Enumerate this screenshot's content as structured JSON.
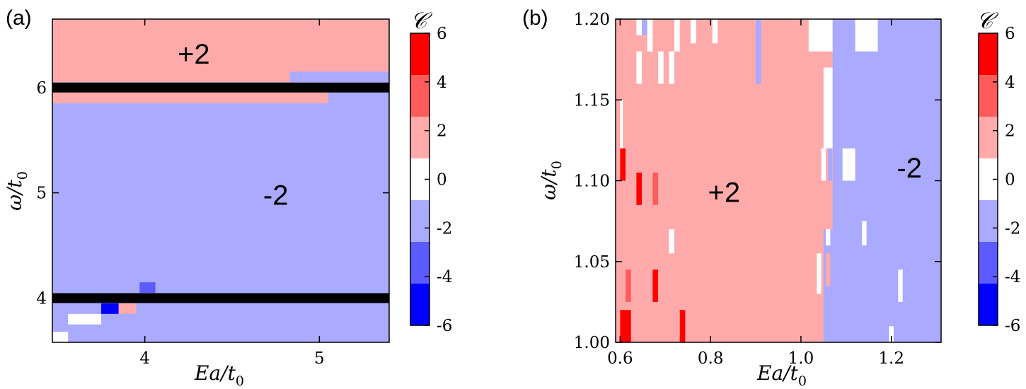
{
  "chart_data": [
    {
      "panel_label": "(a)",
      "type": "heatmap",
      "xlabel": "Ea/t₀",
      "ylabel": "ω/t₀",
      "xlim": [
        3.47,
        5.4
      ],
      "ylim": [
        3.58,
        6.65
      ],
      "xticks": [
        "4",
        "5"
      ],
      "yticks": [
        "4",
        "5",
        "6"
      ],
      "background_value": -2,
      "regions": [
        {
          "x": [
            3.47,
            5.4
          ],
          "y": [
            6.05,
            6.65
          ],
          "value": 2
        },
        {
          "x": [
            4.83,
            5.4
          ],
          "y": [
            6.05,
            6.15
          ],
          "value": -2
        },
        {
          "x": [
            3.47,
            5.05
          ],
          "y": [
            5.85,
            6.0
          ],
          "value": 2
        },
        {
          "x": [
            3.97,
            4.06
          ],
          "y": [
            4.05,
            4.15
          ],
          "value": -4
        },
        {
          "x": [
            3.75,
            3.85
          ],
          "y": [
            3.85,
            3.95
          ],
          "value": -6
        },
        {
          "x": [
            3.85,
            3.95
          ],
          "y": [
            3.85,
            3.95
          ],
          "value": 2
        },
        {
          "x": [
            3.56,
            3.75
          ],
          "y": [
            3.75,
            3.85
          ],
          "value": 0
        },
        {
          "x": [
            3.47,
            3.56
          ],
          "y": [
            3.58,
            3.68
          ],
          "value": 0
        }
      ],
      "black_lines_y": [
        6.0,
        4.0
      ],
      "annotations": [
        {
          "text": "+2",
          "x": 4.28,
          "y": 6.32
        },
        {
          "text": "-2",
          "x": 4.75,
          "y": 4.98
        }
      ],
      "colorbar": {
        "label": "𝒞",
        "ticks": [
          "6",
          "4",
          "2",
          "0",
          "-2",
          "-4",
          "-6"
        ],
        "colors": [
          "#ff0000",
          "#ff5b5b",
          "#ffaaaa",
          "#ffffff",
          "#aaaaff",
          "#5b5bff",
          "#0000ff"
        ]
      }
    },
    {
      "panel_label": "(b)",
      "type": "heatmap",
      "xlabel": "Ea/t₀",
      "ylabel": "ω/t₀",
      "xlim": [
        0.59,
        1.31
      ],
      "ylim": [
        1.0,
        1.2
      ],
      "xticks": [
        "0.6",
        "0.8",
        "1.0",
        "1.2"
      ],
      "yticks": [
        "1.00",
        "1.05",
        "1.10",
        "1.15",
        "1.20"
      ],
      "background_value": 2,
      "regions": [
        {
          "x": [
            1.07,
            1.31
          ],
          "y": [
            1.0,
            1.2
          ],
          "value": -2
        },
        {
          "x": [
            1.05,
            1.07
          ],
          "y": [
            1.0,
            1.07
          ],
          "value": -2
        },
        {
          "x": [
            1.12,
            1.17
          ],
          "y": [
            1.18,
            1.2
          ],
          "value": 0
        },
        {
          "x": [
            1.017,
            1.07
          ],
          "y": [
            1.18,
            1.2
          ],
          "value": 0
        },
        {
          "x": [
            1.05,
            1.07
          ],
          "y": [
            1.12,
            1.17
          ],
          "value": 0
        },
        {
          "x": [
            1.092,
            1.104
          ],
          "y": [
            1.1,
            1.12
          ],
          "value": 0
        },
        {
          "x": [
            1.104,
            1.12
          ],
          "y": [
            1.1,
            1.12
          ],
          "value": 0
        },
        {
          "x": [
            1.06,
            1.069
          ],
          "y": [
            1.1,
            1.12
          ],
          "value": -2
        },
        {
          "x": [
            1.045,
            1.055
          ],
          "y": [
            1.1,
            1.12
          ],
          "value": 0
        },
        {
          "x": [
            1.035,
            1.045
          ],
          "y": [
            1.03,
            1.055
          ],
          "value": 0
        },
        {
          "x": [
            1.055,
            1.065
          ],
          "y": [
            1.06,
            1.07
          ],
          "value": 0
        },
        {
          "x": [
            1.055,
            1.065
          ],
          "y": [
            1.035,
            1.055
          ],
          "value": 2
        },
        {
          "x": [
            1.135,
            1.145
          ],
          "y": [
            1.06,
            1.075
          ],
          "value": 0
        },
        {
          "x": [
            1.195,
            1.205
          ],
          "y": [
            1.0,
            1.01
          ],
          "value": 0
        },
        {
          "x": [
            1.215,
            1.225
          ],
          "y": [
            1.025,
            1.045
          ],
          "value": 0
        },
        {
          "x": [
            0.6,
            0.606
          ],
          "y": [
            1.12,
            1.15
          ],
          "value": 0
        },
        {
          "x": [
            0.6,
            0.612
          ],
          "y": [
            1.1,
            1.12
          ],
          "value": 6
        },
        {
          "x": [
            0.6,
            0.624
          ],
          "y": [
            1.0,
            1.02
          ],
          "value": 6
        },
        {
          "x": [
            0.612,
            0.624
          ],
          "y": [
            1.025,
            1.045
          ],
          "value": 4
        },
        {
          "x": [
            0.636,
            0.648
          ],
          "y": [
            1.085,
            1.105
          ],
          "value": 6
        },
        {
          "x": [
            0.672,
            0.684
          ],
          "y": [
            1.085,
            1.105
          ],
          "value": 4
        },
        {
          "x": [
            0.672,
            0.684
          ],
          "y": [
            1.025,
            1.045
          ],
          "value": 6
        },
        {
          "x": [
            0.732,
            0.744
          ],
          "y": [
            1.0,
            1.02
          ],
          "value": 6
        },
        {
          "x": [
            0.636,
            0.648
          ],
          "y": [
            1.16,
            1.18
          ],
          "value": 0
        },
        {
          "x": [
            0.648,
            0.66
          ],
          "y": [
            1.19,
            1.2
          ],
          "value": -2
        },
        {
          "x": [
            0.636,
            0.648
          ],
          "y": [
            1.19,
            1.2
          ],
          "value": 0
        },
        {
          "x": [
            0.66,
            0.672
          ],
          "y": [
            1.18,
            1.2
          ],
          "value": 0
        },
        {
          "x": [
            0.684,
            0.696
          ],
          "y": [
            1.16,
            1.18
          ],
          "value": 0
        },
        {
          "x": [
            0.72,
            0.732
          ],
          "y": [
            1.18,
            1.2
          ],
          "value": 0
        },
        {
          "x": [
            0.708,
            0.72
          ],
          "y": [
            1.16,
            1.18
          ],
          "value": 0
        },
        {
          "x": [
            0.756,
            0.768
          ],
          "y": [
            1.185,
            1.2
          ],
          "value": 0
        },
        {
          "x": [
            0.804,
            0.816
          ],
          "y": [
            1.185,
            1.2
          ],
          "value": 0
        },
        {
          "x": [
            0.9,
            0.912
          ],
          "y": [
            1.19,
            1.2
          ],
          "value": -2
        },
        {
          "x": [
            0.9,
            0.912
          ],
          "y": [
            1.16,
            1.2
          ],
          "value": -2
        },
        {
          "x": [
            0.708,
            0.72
          ],
          "y": [
            1.055,
            1.07
          ],
          "value": 0
        }
      ],
      "annotations": [
        {
          "text": "+2",
          "x": 0.83,
          "y": 1.093
        },
        {
          "text": "-2",
          "x": 1.24,
          "y": 1.108
        }
      ],
      "colorbar": {
        "label": "𝒞",
        "ticks": [
          "6",
          "4",
          "2",
          "0",
          "-2",
          "-4",
          "-6"
        ],
        "colors": [
          "#ff0000",
          "#ff5b5b",
          "#ffaaaa",
          "#ffffff",
          "#aaaaff",
          "#5b5bff",
          "#0000ff"
        ]
      }
    }
  ]
}
